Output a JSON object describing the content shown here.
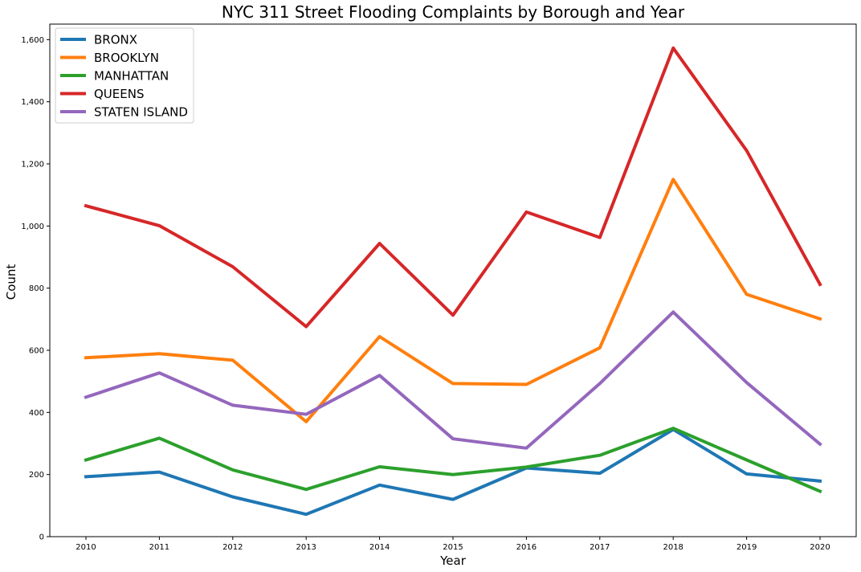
{
  "chart_data": {
    "type": "line",
    "title": "NYC 311 Street Flooding Complaints by Borough and Year",
    "xlabel": "Year",
    "ylabel": "Count",
    "categories": [
      "2010",
      "2011",
      "2012",
      "2013",
      "2014",
      "2015",
      "2016",
      "2017",
      "2018",
      "2019",
      "2020"
    ],
    "ylim": [
      0,
      1650
    ],
    "yticks": [
      0,
      200,
      400,
      600,
      800,
      1000,
      1200,
      1400,
      1600
    ],
    "ytick_labels": [
      "0",
      "200",
      "400",
      "600",
      "800",
      "1,000",
      "1,200",
      "1,400",
      "1,600"
    ],
    "grid": false,
    "legend_position": "top-left",
    "series": [
      {
        "name": "BRONX",
        "color": "#1f77b4",
        "values": [
          193,
          208,
          128,
          72,
          166,
          120,
          221,
          204,
          345,
          202,
          179
        ]
      },
      {
        "name": "BROOKLYN",
        "color": "#ff7f0e",
        "values": [
          576,
          589,
          568,
          370,
          644,
          493,
          490,
          608,
          1150,
          780,
          701
        ]
      },
      {
        "name": "MANHATTAN",
        "color": "#2ca02c",
        "values": [
          247,
          317,
          215,
          152,
          225,
          200,
          224,
          262,
          349,
          247,
          146
        ]
      },
      {
        "name": "QUEENS",
        "color": "#d62728",
        "values": [
          1065,
          1001,
          869,
          676,
          944,
          713,
          1045,
          963,
          1573,
          1243,
          812
        ]
      },
      {
        "name": "STATEN ISLAND",
        "color": "#9467bd",
        "values": [
          449,
          527,
          423,
          394,
          519,
          315,
          285,
          493,
          723,
          496,
          298
        ]
      }
    ]
  }
}
